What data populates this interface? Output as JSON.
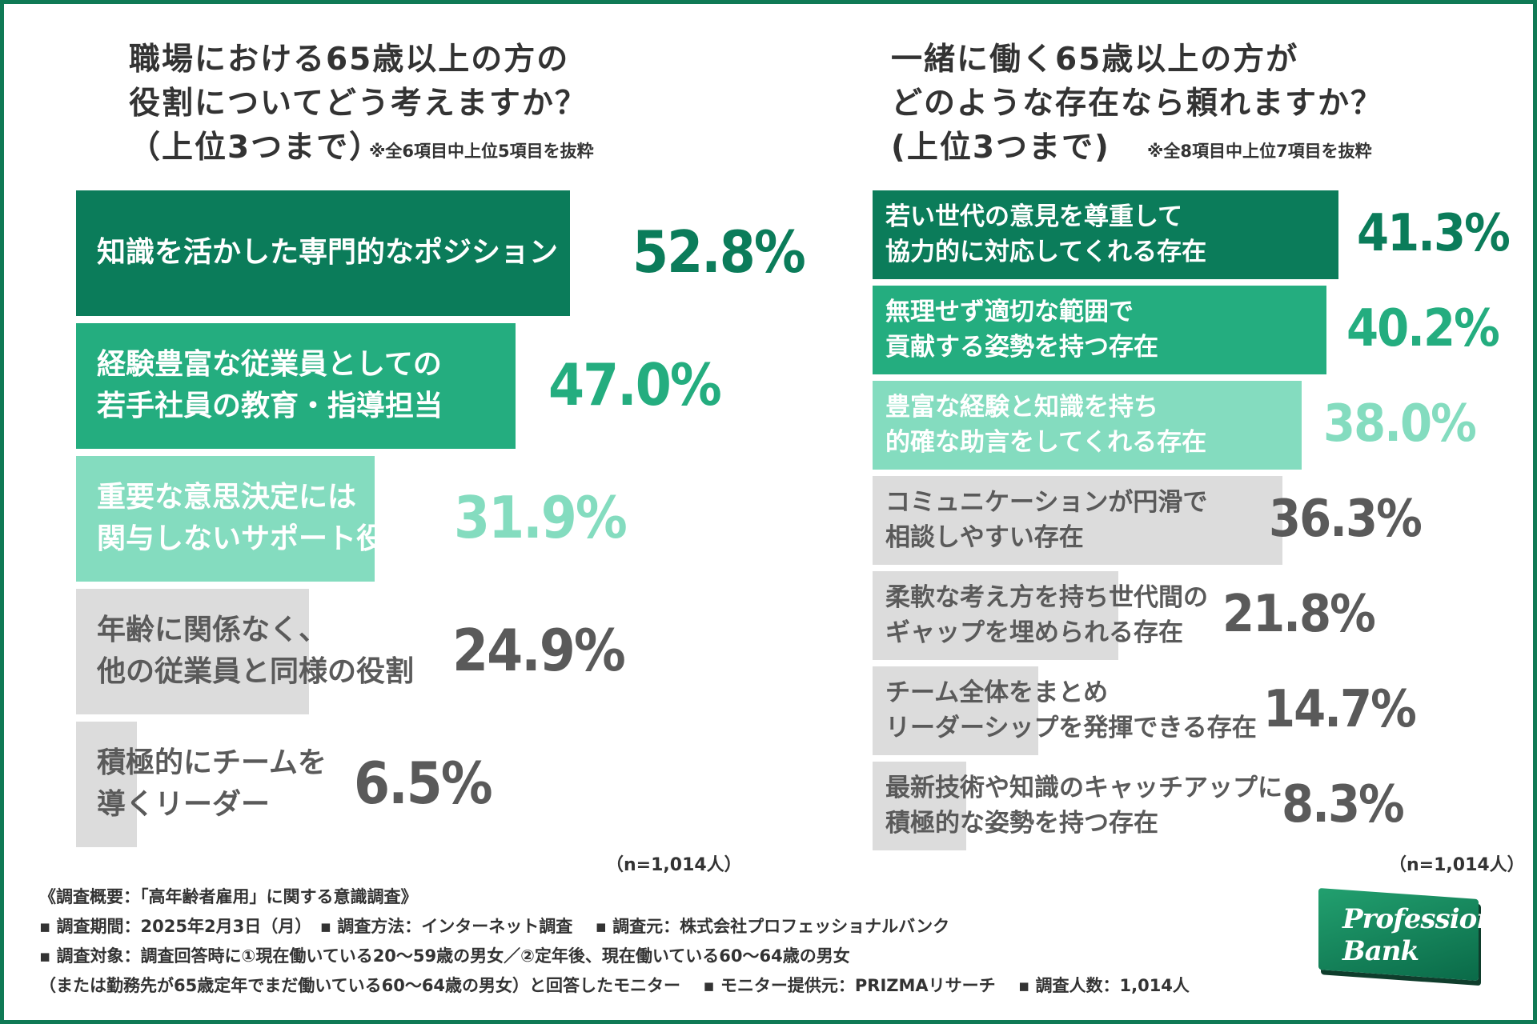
{
  "left": {
    "title_lines": [
      "職場における65歳以上の方の",
      "役割についてどう考えますか？",
      "（上位3つまで）"
    ],
    "note": "※全6項目中上位5項目を抜粋",
    "n_note": "（n=1,014人）"
  },
  "right": {
    "title_lines": [
      "一緒に働く65歳以上の方が",
      "どのような存在なら頼れますか？",
      "(上位3つまで)"
    ],
    "note": "※全8項目中上位7項目を抜粋",
    "n_note": "（n=1,014人）"
  },
  "colors": {
    "dark": "#0b7c5a",
    "medium": "#24ad7f",
    "light": "#84dcbf",
    "gray": "#dcdcdc",
    "gray_text": "#5a5a5a",
    "border": "#0f7a55"
  },
  "chart_data": [
    {
      "type": "bar",
      "orientation": "horizontal",
      "categories": [
        "知識を活かした専門的なポジション",
        "経験豊富な従業員としての若手社員の教育・指導担当",
        "重要な意思決定には関与しないサポート役",
        "年齢に関係なく、他の従業員と同様の役割",
        "積極的にチームを導くリーダー"
      ],
      "label_lines": [
        [
          "知識を活かした専門的なポジション"
        ],
        [
          "経験豊富な従業員としての",
          "若手社員の教育・指導担当"
        ],
        [
          "重要な意思決定には",
          "関与しないサポート役"
        ],
        [
          "年齢に関係なく、",
          "他の従業員と同様の役割"
        ],
        [
          "積極的にチームを",
          "導くリーダー"
        ]
      ],
      "values": [
        52.8,
        47.0,
        31.9,
        24.9,
        6.5
      ],
      "value_labels": [
        "52.8%",
        "47.0%",
        "31.9%",
        "24.9%",
        "6.5%"
      ],
      "styles": [
        "dark",
        "medium",
        "light",
        "gray",
        "gray"
      ]
    },
    {
      "type": "bar",
      "orientation": "horizontal",
      "categories": [
        "若い世代の意見を尊重して協力的に対応してくれる存在",
        "無理せず適切な範囲で貢献する姿勢を持つ存在",
        "豊富な経験と知識を持ち的確な助言をしてくれる存在",
        "コミュニケーションが円滑で相談しやすい存在",
        "柔軟な考え方を持ち世代間のギャップを埋められる存在",
        "チーム全体をまとめリーダーシップを発揮できる存在",
        "最新技術や知識のキャッチアップに積極的な姿勢を持つ存在"
      ],
      "label_lines": [
        [
          "若い世代の意見を尊重して",
          "協力的に対応してくれる存在"
        ],
        [
          "無理せず適切な範囲で",
          "貢献する姿勢を持つ存在"
        ],
        [
          "豊富な経験と知識を持ち",
          "的確な助言をしてくれる存在"
        ],
        [
          "コミュニケーションが円滑で",
          "相談しやすい存在"
        ],
        [
          "柔軟な考え方を持ち世代間の",
          "ギャップを埋められる存在"
        ],
        [
          "チーム全体をまとめ",
          "リーダーシップを発揮できる存在"
        ],
        [
          "最新技術や知識のキャッチアップに",
          "積極的な姿勢を持つ存在"
        ]
      ],
      "values": [
        41.3,
        40.2,
        38.0,
        36.3,
        21.8,
        14.7,
        8.3
      ],
      "value_labels": [
        "41.3%",
        "40.2%",
        "38.0%",
        "36.3%",
        "21.8%",
        "14.7%",
        "8.3%"
      ],
      "styles": [
        "dark",
        "medium",
        "light",
        "gray",
        "gray",
        "gray",
        "gray"
      ]
    }
  ],
  "footer": {
    "lines": [
      "《調査概要：「高年齢者雇用」に関する意識調査》",
      "▪ 調査期間：2025年2月3日（月）　▪ 調査方法：インターネット調査　 ▪ 調査元：株式会社プロフェッショナルバンク",
      "▪ 調査対象：調査回答時に①現在働いている20〜59歳の男女／②定年後、現在働いている60〜64歳の男女",
      "（または勤務先が65歳定年でまだ働いている60〜64歳の男女）と回答したモニター　 ▪ モニター提供元：PRIZMAリサーチ　 ▪ 調査人数：1,014人"
    ]
  },
  "logo": {
    "line1": "Professional",
    "line2": "Bank"
  }
}
